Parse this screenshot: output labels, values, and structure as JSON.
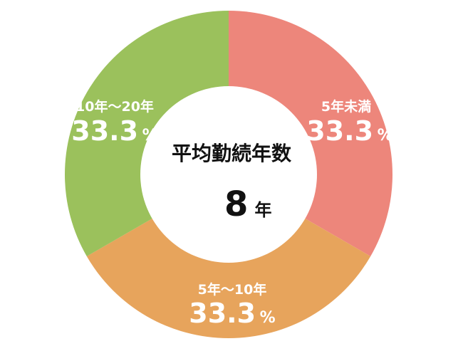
{
  "chart_data": {
    "type": "pie",
    "title": "",
    "center": {
      "title": "平均勤続年数",
      "value": "8",
      "unit": "年"
    },
    "slices": [
      {
        "label": "5年未満",
        "value": 33.3,
        "display": "33.3",
        "unit": "%",
        "color": "#ed867b"
      },
      {
        "label": "5年〜10年",
        "value": 33.3,
        "display": "33.3",
        "unit": "%",
        "color": "#e7a45c"
      },
      {
        "label": "10年〜20年",
        "value": 33.3,
        "display": "33.3",
        "unit": "%",
        "color": "#9bc15c"
      }
    ]
  }
}
